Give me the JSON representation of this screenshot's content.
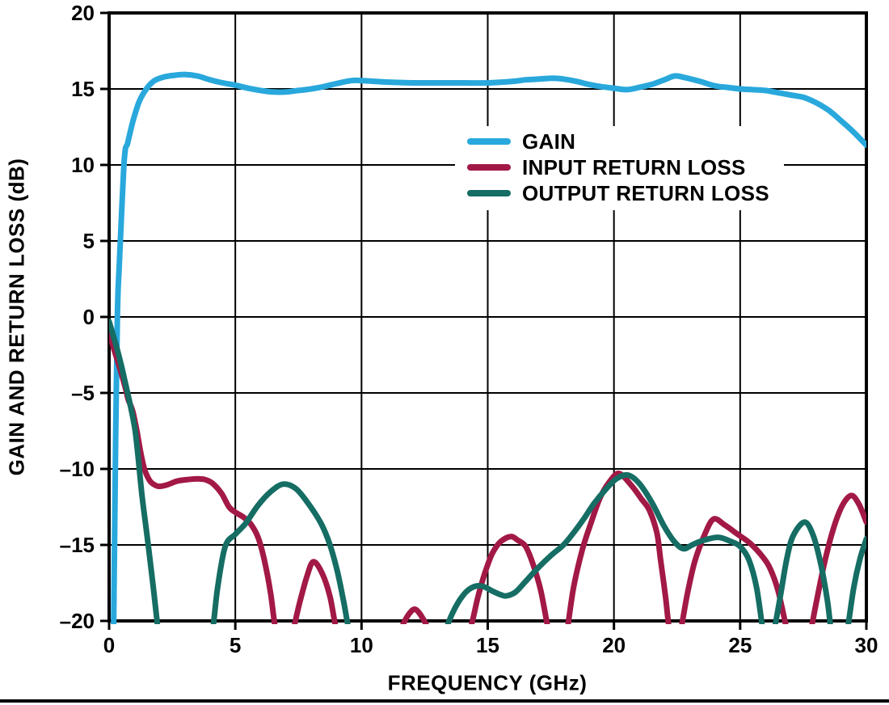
{
  "chart_data": {
    "type": "line",
    "title": "",
    "xlabel": "FREQUENCY (GHz)",
    "ylabel": "GAIN AND RETURN LOSS (dB)",
    "xlim": [
      0,
      30
    ],
    "ylim": [
      -20,
      20
    ],
    "x_ticks": [
      0,
      5,
      10,
      15,
      20,
      25,
      30
    ],
    "x_tick_labels": [
      "0",
      "5",
      "10",
      "15",
      "20",
      "25",
      "30"
    ],
    "y_ticks": [
      20,
      15,
      10,
      5,
      0,
      -5,
      -10,
      -15,
      -20
    ],
    "y_tick_labels": [
      "20",
      "15",
      "10",
      "5",
      "0",
      "–5",
      "–10",
      "–15",
      "–20"
    ],
    "grid": true,
    "axis_color": "#000000",
    "legend_position": "inside top-center",
    "series": [
      {
        "name": "GAIN",
        "color": "#29A8DC",
        "points": [
          [
            0.18,
            -20.5
          ],
          [
            0.22,
            -14
          ],
          [
            0.26,
            -8
          ],
          [
            0.3,
            -3
          ],
          [
            0.33,
            0.2
          ],
          [
            0.36,
            1.9
          ],
          [
            0.4,
            3.3
          ],
          [
            0.45,
            5.2
          ],
          [
            0.5,
            7
          ],
          [
            0.55,
            8.8
          ],
          [
            0.6,
            10.3
          ],
          [
            0.65,
            11.1
          ],
          [
            0.72,
            11.35
          ],
          [
            0.8,
            11.9
          ],
          [
            0.9,
            12.6
          ],
          [
            1.0,
            13.2
          ],
          [
            1.2,
            14.2
          ],
          [
            1.5,
            15.05
          ],
          [
            1.8,
            15.55
          ],
          [
            2.2,
            15.8
          ],
          [
            2.6,
            15.9
          ],
          [
            3.0,
            15.95
          ],
          [
            3.5,
            15.85
          ],
          [
            4.0,
            15.6
          ],
          [
            4.5,
            15.4
          ],
          [
            5.0,
            15.25
          ],
          [
            5.5,
            15.05
          ],
          [
            6.0,
            14.9
          ],
          [
            6.5,
            14.8
          ],
          [
            7.0,
            14.8
          ],
          [
            7.5,
            14.9
          ],
          [
            8.0,
            15.0
          ],
          [
            8.5,
            15.15
          ],
          [
            9.0,
            15.35
          ],
          [
            9.6,
            15.55
          ],
          [
            10.0,
            15.55
          ],
          [
            10.5,
            15.5
          ],
          [
            11.0,
            15.45
          ],
          [
            12.0,
            15.4
          ],
          [
            13.0,
            15.4
          ],
          [
            14.0,
            15.4
          ],
          [
            15.0,
            15.4
          ],
          [
            16.0,
            15.5
          ],
          [
            16.5,
            15.6
          ],
          [
            17.0,
            15.65
          ],
          [
            17.6,
            15.7
          ],
          [
            18.0,
            15.65
          ],
          [
            18.5,
            15.5
          ],
          [
            19.0,
            15.3
          ],
          [
            19.5,
            15.15
          ],
          [
            20.0,
            15.05
          ],
          [
            20.5,
            14.95
          ],
          [
            21.0,
            15.1
          ],
          [
            21.5,
            15.3
          ],
          [
            22.0,
            15.6
          ],
          [
            22.4,
            15.85
          ],
          [
            22.8,
            15.75
          ],
          [
            23.4,
            15.5
          ],
          [
            24.0,
            15.2
          ],
          [
            24.5,
            15.1
          ],
          [
            25.0,
            15.0
          ],
          [
            25.5,
            14.95
          ],
          [
            26.0,
            14.9
          ],
          [
            26.5,
            14.75
          ],
          [
            27.0,
            14.6
          ],
          [
            27.5,
            14.45
          ],
          [
            28.0,
            14.1
          ],
          [
            28.5,
            13.6
          ],
          [
            29.0,
            12.9
          ],
          [
            29.5,
            12.15
          ],
          [
            30.0,
            11.3
          ]
        ]
      },
      {
        "name": "INPUT RETURN LOSS",
        "color": "#A21946",
        "points": [
          [
            0,
            -1.05
          ],
          [
            0.15,
            -1.9
          ],
          [
            0.3,
            -2.7
          ],
          [
            0.5,
            -3.8
          ],
          [
            0.65,
            -4.7
          ],
          [
            0.75,
            -5.4
          ],
          [
            0.85,
            -5.8
          ],
          [
            0.95,
            -6.3
          ],
          [
            1.1,
            -7.5
          ],
          [
            1.25,
            -8.9
          ],
          [
            1.4,
            -10.0
          ],
          [
            1.6,
            -10.75
          ],
          [
            1.8,
            -11.05
          ],
          [
            2.0,
            -11.15
          ],
          [
            2.3,
            -11.05
          ],
          [
            2.7,
            -10.8
          ],
          [
            3.1,
            -10.7
          ],
          [
            3.5,
            -10.65
          ],
          [
            3.8,
            -10.7
          ],
          [
            4.1,
            -10.95
          ],
          [
            4.45,
            -11.6
          ],
          [
            4.75,
            -12.5
          ],
          [
            5.0,
            -12.85
          ],
          [
            5.3,
            -13.15
          ],
          [
            5.6,
            -13.6
          ],
          [
            5.9,
            -14.5
          ],
          [
            6.15,
            -16.0
          ],
          [
            6.4,
            -18.2
          ],
          [
            6.6,
            -20.6
          ],
          [
            6.9,
            -22.5
          ],
          [
            7.05,
            -22.5
          ],
          [
            7.3,
            -20.6
          ],
          [
            7.55,
            -18.8
          ],
          [
            7.85,
            -17.0
          ],
          [
            8.1,
            -16.1
          ],
          [
            8.45,
            -16.9
          ],
          [
            8.75,
            -18.4
          ],
          [
            9.0,
            -20.6
          ],
          [
            9.4,
            -23.5
          ],
          [
            10.5,
            -24.0
          ],
          [
            11.3,
            -21.8
          ],
          [
            11.6,
            -20.4
          ],
          [
            11.9,
            -19.5
          ],
          [
            12.15,
            -19.25
          ],
          [
            12.45,
            -19.9
          ],
          [
            12.7,
            -20.8
          ],
          [
            13.0,
            -22.5
          ],
          [
            13.8,
            -23.0
          ],
          [
            14.3,
            -20.6
          ],
          [
            14.6,
            -18.5
          ],
          [
            14.8,
            -17.3
          ],
          [
            15.0,
            -16.3
          ],
          [
            15.2,
            -15.5
          ],
          [
            15.5,
            -14.8
          ],
          [
            15.9,
            -14.45
          ],
          [
            16.2,
            -14.7
          ],
          [
            16.5,
            -15.1
          ],
          [
            16.8,
            -16.3
          ],
          [
            17.1,
            -18.0
          ],
          [
            17.4,
            -20.6
          ],
          [
            17.65,
            -22.5
          ],
          [
            17.95,
            -22.5
          ],
          [
            18.15,
            -20.6
          ],
          [
            18.4,
            -17.8
          ],
          [
            18.75,
            -15.3
          ],
          [
            19.1,
            -13.5
          ],
          [
            19.45,
            -11.9
          ],
          [
            19.8,
            -10.9
          ],
          [
            20.2,
            -10.3
          ],
          [
            20.7,
            -11.1
          ],
          [
            21.1,
            -12.0
          ],
          [
            21.4,
            -12.7
          ],
          [
            21.7,
            -14.2
          ],
          [
            21.85,
            -16.0
          ],
          [
            22.05,
            -18.5
          ],
          [
            22.2,
            -20.6
          ],
          [
            22.45,
            -22.0
          ],
          [
            22.65,
            -20.6
          ],
          [
            22.9,
            -18.3
          ],
          [
            23.2,
            -16.1
          ],
          [
            23.6,
            -14.3
          ],
          [
            23.95,
            -13.3
          ],
          [
            24.4,
            -13.7
          ],
          [
            24.9,
            -14.3
          ],
          [
            25.4,
            -14.9
          ],
          [
            25.9,
            -15.8
          ],
          [
            26.2,
            -16.6
          ],
          [
            26.5,
            -18.0
          ],
          [
            26.85,
            -20.6
          ],
          [
            27.1,
            -22.5
          ],
          [
            27.5,
            -22.5
          ],
          [
            27.8,
            -20.6
          ],
          [
            28.05,
            -18.5
          ],
          [
            28.35,
            -16.1
          ],
          [
            28.7,
            -13.9
          ],
          [
            29.05,
            -12.4
          ],
          [
            29.4,
            -11.75
          ],
          [
            29.7,
            -12.3
          ],
          [
            30,
            -13.5
          ]
        ]
      },
      {
        "name": "OUTPUT RETURN LOSS",
        "color": "#156D64",
        "points": [
          [
            0,
            -0.3
          ],
          [
            0.15,
            -1.15
          ],
          [
            0.3,
            -2.0
          ],
          [
            0.5,
            -3.3
          ],
          [
            0.65,
            -4.4
          ],
          [
            0.8,
            -5.5
          ],
          [
            0.95,
            -6.7
          ],
          [
            1.05,
            -7.7
          ],
          [
            1.15,
            -9.2
          ],
          [
            1.3,
            -11.7
          ],
          [
            1.45,
            -13.7
          ],
          [
            1.55,
            -15.0
          ],
          [
            1.75,
            -17.8
          ],
          [
            1.9,
            -20.0
          ],
          [
            2.0,
            -21.5
          ],
          [
            2.3,
            -24.0
          ],
          [
            3.3,
            -25.0
          ],
          [
            3.85,
            -22.5
          ],
          [
            4.1,
            -20.6
          ],
          [
            4.3,
            -17.8
          ],
          [
            4.6,
            -15.1
          ],
          [
            5.0,
            -14.3
          ],
          [
            5.4,
            -13.6
          ],
          [
            5.9,
            -12.4
          ],
          [
            6.4,
            -11.5
          ],
          [
            6.9,
            -11.0
          ],
          [
            7.4,
            -11.3
          ],
          [
            7.9,
            -12.3
          ],
          [
            8.4,
            -13.6
          ],
          [
            8.75,
            -15.0
          ],
          [
            9.05,
            -16.8
          ],
          [
            9.3,
            -18.8
          ],
          [
            9.5,
            -20.6
          ],
          [
            9.9,
            -23.5
          ],
          [
            12.2,
            -25.0
          ],
          [
            13.0,
            -22.0
          ],
          [
            13.35,
            -20.5
          ],
          [
            13.6,
            -19.5
          ],
          [
            13.9,
            -18.6
          ],
          [
            14.2,
            -18.0
          ],
          [
            14.55,
            -17.7
          ],
          [
            14.85,
            -17.75
          ],
          [
            15.2,
            -18.05
          ],
          [
            15.55,
            -18.3
          ],
          [
            15.75,
            -18.35
          ],
          [
            16.1,
            -18.1
          ],
          [
            16.5,
            -17.4
          ],
          [
            17.0,
            -16.5
          ],
          [
            17.5,
            -15.7
          ],
          [
            18.0,
            -15.0
          ],
          [
            18.4,
            -14.2
          ],
          [
            18.8,
            -13.3
          ],
          [
            19.2,
            -12.3
          ],
          [
            19.7,
            -11.3
          ],
          [
            20.1,
            -10.65
          ],
          [
            20.55,
            -10.4
          ],
          [
            21.0,
            -10.95
          ],
          [
            21.5,
            -12.2
          ],
          [
            22.0,
            -13.8
          ],
          [
            22.4,
            -14.8
          ],
          [
            22.75,
            -15.25
          ],
          [
            23.1,
            -15.0
          ],
          [
            23.45,
            -14.75
          ],
          [
            24.1,
            -14.5
          ],
          [
            24.6,
            -14.75
          ],
          [
            25.0,
            -15.1
          ],
          [
            25.35,
            -16.0
          ],
          [
            25.65,
            -17.8
          ],
          [
            25.9,
            -20.6
          ],
          [
            26.1,
            -22.5
          ],
          [
            26.35,
            -20.6
          ],
          [
            26.6,
            -18.3
          ],
          [
            26.85,
            -15.9
          ],
          [
            27.1,
            -14.4
          ],
          [
            27.55,
            -13.5
          ],
          [
            27.9,
            -14.4
          ],
          [
            28.2,
            -16.3
          ],
          [
            28.45,
            -18.6
          ],
          [
            28.6,
            -20.6
          ],
          [
            28.8,
            -22.5
          ],
          [
            29.05,
            -22.5
          ],
          [
            29.25,
            -20.6
          ],
          [
            29.5,
            -17.8
          ],
          [
            29.75,
            -15.9
          ],
          [
            30,
            -14.6
          ]
        ]
      }
    ]
  }
}
